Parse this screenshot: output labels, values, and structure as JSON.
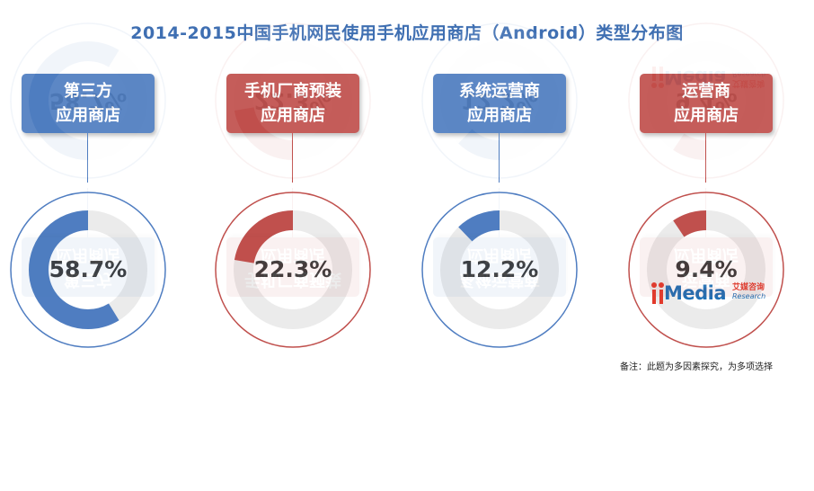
{
  "title": "2014-2015中国手机网民使用手机应用商店（Android）类型分布图",
  "chart_data": {
    "type": "donut",
    "categories": [
      "第三方应用商店",
      "手机厂商预装应用商店",
      "系统运营商应用商店",
      "运营商应用商店"
    ],
    "values": [
      58.7,
      22.3,
      12.2,
      9.4
    ],
    "unit": "%",
    "items": [
      {
        "label_line1": "第三方",
        "label_line2": "应用商店",
        "value": 58.7,
        "value_label": "58.7%",
        "color": "#4f7dc1"
      },
      {
        "label_line1": "手机厂商预装",
        "label_line2": "应用商店",
        "value": 22.3,
        "value_label": "22.3%",
        "color": "#c0504d"
      },
      {
        "label_line1": "系统运营商",
        "label_line2": "应用商店",
        "value": 12.2,
        "value_label": "12.2%",
        "color": "#4f7dc1"
      },
      {
        "label_line1": "运营商",
        "label_line2": "应用商店",
        "value": 9.4,
        "value_label": "9.4%",
        "color": "#c0504d"
      }
    ]
  },
  "logo": {
    "brand": "iiMedia",
    "cn": "艾媒咨询",
    "sub": "Research"
  },
  "note": "备注：此题为多因素探究，为多项选择",
  "colors": {
    "blue": "#4f7dc1",
    "red": "#c0504d",
    "track": "#ebebeb",
    "title": "#3f6fb2"
  }
}
